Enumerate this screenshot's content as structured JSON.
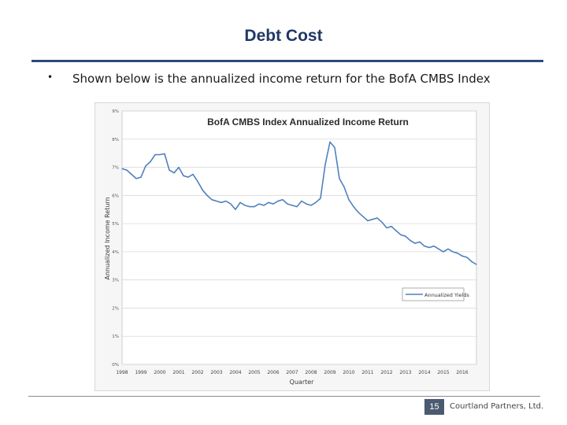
{
  "slide": {
    "title": "Debt Cost",
    "bullet_marker": "•",
    "bullet_text": "Shown below is the annualized income return for the BofA CMBS Index"
  },
  "footer": {
    "page_number": "15",
    "company": "Courtland Partners, Ltd."
  },
  "colors": {
    "title": "#1f3864",
    "rule": "#2c4a7a",
    "series": "#4f81bd"
  },
  "chart_data": {
    "type": "line",
    "title": "BofA CMBS Index Annualized Income Return",
    "xlabel": "Quarter",
    "ylabel": "Annualized Income Return",
    "ylim": [
      0,
      9
    ],
    "yticks": [
      "0%",
      "1%",
      "2%",
      "3%",
      "4%",
      "5%",
      "6%",
      "7%",
      "8%",
      "9%"
    ],
    "xlim": [
      1998,
      2016.75
    ],
    "xticks": [
      "1998",
      "1999",
      "2000",
      "2001",
      "2002",
      "2003",
      "2004",
      "2005",
      "2006",
      "2007",
      "2008",
      "2009",
      "2010",
      "2011",
      "2012",
      "2013",
      "2014",
      "2015",
      "2016"
    ],
    "grid": true,
    "legend": {
      "position": "right-middle",
      "entries": [
        "Annualized Yields"
      ]
    },
    "series": [
      {
        "name": "Annualized Yields",
        "x": [
          1998.0,
          1998.25,
          1998.5,
          1998.75,
          1999.0,
          1999.25,
          1999.5,
          1999.75,
          2000.0,
          2000.25,
          2000.5,
          2000.75,
          2001.0,
          2001.25,
          2001.5,
          2001.75,
          2002.0,
          2002.25,
          2002.5,
          2002.75,
          2003.0,
          2003.25,
          2003.5,
          2003.75,
          2004.0,
          2004.25,
          2004.5,
          2004.75,
          2005.0,
          2005.25,
          2005.5,
          2005.75,
          2006.0,
          2006.25,
          2006.5,
          2006.75,
          2007.0,
          2007.25,
          2007.5,
          2007.75,
          2008.0,
          2008.25,
          2008.5,
          2008.75,
          2009.0,
          2009.25,
          2009.5,
          2009.75,
          2010.0,
          2010.25,
          2010.5,
          2010.75,
          2011.0,
          2011.25,
          2011.5,
          2011.75,
          2012.0,
          2012.25,
          2012.5,
          2012.75,
          2013.0,
          2013.25,
          2013.5,
          2013.75,
          2014.0,
          2014.25,
          2014.5,
          2014.75,
          2015.0,
          2015.25,
          2015.5,
          2015.75,
          2016.0,
          2016.25,
          2016.5,
          2016.75
        ],
        "values": [
          6.95,
          6.9,
          6.75,
          6.6,
          6.65,
          7.05,
          7.2,
          7.45,
          7.45,
          7.48,
          6.9,
          6.8,
          7.0,
          6.7,
          6.65,
          6.75,
          6.5,
          6.2,
          6.0,
          5.85,
          5.8,
          5.75,
          5.8,
          5.7,
          5.5,
          5.75,
          5.65,
          5.6,
          5.6,
          5.7,
          5.65,
          5.75,
          5.7,
          5.8,
          5.85,
          5.7,
          5.65,
          5.6,
          5.8,
          5.7,
          5.65,
          5.75,
          5.9,
          7.1,
          7.9,
          7.7,
          6.6,
          6.3,
          5.85,
          5.6,
          5.4,
          5.25,
          5.1,
          5.15,
          5.2,
          5.05,
          4.85,
          4.9,
          4.75,
          4.6,
          4.55,
          4.4,
          4.3,
          4.35,
          4.2,
          4.15,
          4.2,
          4.1,
          4.0,
          4.1,
          4.0,
          3.95,
          3.85,
          3.8,
          3.65,
          3.55
        ]
      }
    ]
  }
}
